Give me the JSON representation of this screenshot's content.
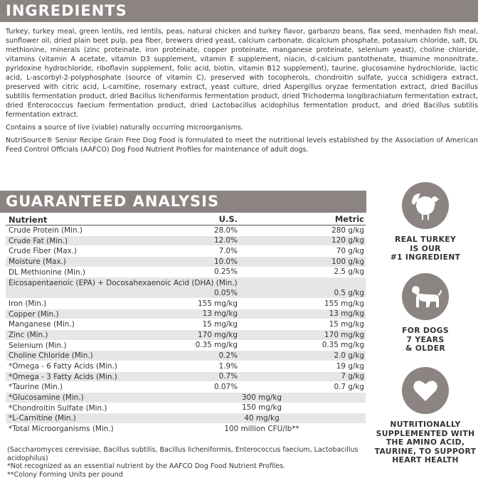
{
  "ingredients": {
    "title": "INGREDIENTS",
    "paragraphs": [
      "Turkey, turkey meal, green lentils, red lentils, peas, natural chicken and turkey flavor, garbanzo beans, flax seed, menhaden fish meal, sunflower oil, dried plain beet pulp, pea fiber, brewers dried yeast, calcium carbonate, dicalcium phosphate, potassium chloride, salt, DL methionine, minerals (zinc proteinate, iron proteinate, copper proteinate, manganese proteinate, selenium yeast), choline chloride, vitamins (vitamin A acetate, vitamin D3 supplement, vitamin E supplement, niacin, d-calcium pantothenate, thiamine mononitrate, pyridoxine hydrochloride, riboflavin supplement, folic acid, biotin, vitamin B12 supplement), taurine, glucosamine hydrochloride, lactic acid, L-ascorbyl-2-polyphosphate (source of vitamin C), preserved with tocopherols, chondroitin sulfate, yucca schidigera extract, preserved with citric acid, L-carnitine, rosemary extract, yeast culture, dried Aspergillus oryzae fermentation extract, dried Bacillus subtilis fermentation product, dried Bacillus licheniformis fermentation product, dried Trichoderma longibrachiatum fermentation extract, dried Enterococcus faecium fermentation product, dried Lactobacillus acidophilus fermentation product, and dried Bacillus subtilis fermentation extract.",
      "Contains a source of live (viable) naturally occurring microorganisms.",
      "NutriSource® Senior Recipe Grain Free Dog Food is formulated to meet the nutritional levels established by the Association of American Feed Control Officials (AAFCO) Dog Food Nutrient Profiles for maintenance of adult dogs."
    ]
  },
  "analysis": {
    "title": "GUARANTEED ANALYSIS",
    "header": [
      "Nutrient",
      "U.S.",
      "Metric"
    ],
    "rows": [
      [
        "Crude Protein (Min.)",
        "28.0%",
        "280 g/kg"
      ],
      [
        "Crude Fat (Min.)",
        "12.0%",
        "120 g/kg"
      ],
      [
        "Crude Fiber (Max.)",
        "7.0%",
        "70 g/kg"
      ],
      [
        "Moisture (Max.)",
        "10.0%",
        "100 g/kg"
      ],
      [
        "DL Methionine (Min.)",
        "0.25%",
        "2.5 g/kg"
      ],
      [
        "Eicosapentaenoic (EPA) + Docosahexaenoic Acid (DHA) (Min.)",
        "0.05%",
        "0.5 g/kg"
      ],
      [
        "Iron (Min.)",
        "155 mg/kg",
        "155 mg/kg"
      ],
      [
        "Copper (Min.)",
        "13 mg/kg",
        "13 mg/kg"
      ],
      [
        "Manganese (Min.)",
        "15 mg/kg",
        "15 mg/kg"
      ],
      [
        "Zinc (Min.)",
        "170 mg/kg",
        "170 mg/kg"
      ],
      [
        "Selenium (Min.)",
        "0.35 mg/kg",
        "0.35 mg/kg"
      ],
      [
        "Choline Chloride (Min.)",
        "0.2%",
        "2.0 g/kg"
      ],
      [
        "*Omega - 6 Fatty Acids (Min.)",
        "1.9%",
        "19 g/kg"
      ],
      [
        "*Omega - 3 Fatty Acids (Min.)",
        "0.7%",
        "7 g/kg"
      ],
      [
        "*Taurine (Min.)",
        "0.07%",
        "0.7 g/kg"
      ],
      [
        "*Glucosamine (Min.)",
        "300 mg/kg"
      ],
      [
        "*Chondroitin Sulfate (Min.)",
        "150 mg/kg"
      ],
      [
        "*L-Carnitine (Min.)",
        "40 mg/kg"
      ],
      [
        "*Total Microorganisms (Min.)",
        "100 million CFU/lb**"
      ]
    ],
    "notes": [
      "(Saccharomyces cerevisiae, Bacillus subtilis, Bacillus licheniformis, Enterococcus faecium, Lactobacillus acidophilus)",
      "*Not recognized as an essential nutrient by the AAFCO Dog Food Nutrient Profiles.",
      "**Colony Forming Units per pound"
    ]
  },
  "badges": [
    {
      "lines": [
        "REAL TURKEY",
        "IS OUR",
        "#1 INGREDIENT"
      ]
    },
    {
      "lines": [
        "FOR DOGS",
        "7 YEARS",
        "& OLDER"
      ]
    },
    {
      "lines": [
        "NUTRITIONALLY",
        "SUPPLEMENTED WITH",
        "THE AMINO ACID,",
        "TAURINE, TO SUPPORT",
        "HEART HEALTH"
      ]
    }
  ]
}
